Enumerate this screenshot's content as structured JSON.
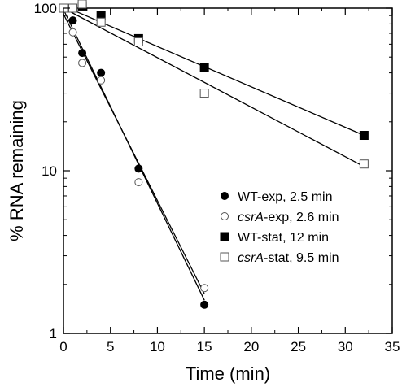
{
  "chart_data": {
    "type": "scatter",
    "xlabel": "Time (min)",
    "ylabel": "% RNA remaining",
    "xlim": [
      0,
      35
    ],
    "ylim": [
      1,
      100
    ],
    "yscale": "log",
    "x_ticks": [
      "0",
      "5",
      "10",
      "15",
      "20",
      "25",
      "30",
      "35"
    ],
    "y_ticks": [
      "1",
      "10",
      "100"
    ],
    "grid": false,
    "legend_position": "bottom-right",
    "series": [
      {
        "name_parts": [
          "WT-exp, 2.5 min"
        ],
        "marker": "filled-circle",
        "x": [
          0,
          1,
          2,
          4,
          8,
          15
        ],
        "y": [
          100,
          84,
          53,
          40,
          10.3,
          1.5
        ],
        "fit": {
          "x": [
            0,
            15
          ],
          "y": [
            98,
            1.6
          ]
        }
      },
      {
        "name_parts": [
          "csrA",
          "-exp, 2.6 min"
        ],
        "marker": "open-circle",
        "x": [
          0,
          1,
          2,
          4,
          8,
          15
        ],
        "y": [
          100,
          71,
          46,
          36,
          8.5,
          1.9
        ],
        "fit": {
          "x": [
            0,
            15
          ],
          "y": [
            92,
            1.75
          ]
        }
      },
      {
        "name_parts": [
          "WT-stat, 12  min"
        ],
        "marker": "filled-square",
        "x": [
          0,
          1,
          2,
          4,
          8,
          15,
          32
        ],
        "y": [
          100,
          100,
          103,
          90,
          65,
          43,
          16.5
        ],
        "fit": {
          "x": [
            0,
            32
          ],
          "y": [
            103,
            16.5
          ]
        }
      },
      {
        "name_parts": [
          "csrA",
          "-stat, 9.5 min"
        ],
        "marker": "open-square",
        "x": [
          0,
          1,
          2,
          4,
          8,
          15,
          32
        ],
        "y": [
          100,
          100,
          106,
          82,
          62,
          30,
          11
        ],
        "fit": {
          "x": [
            0,
            32
          ],
          "y": [
            100,
            10.6
          ]
        }
      }
    ]
  }
}
